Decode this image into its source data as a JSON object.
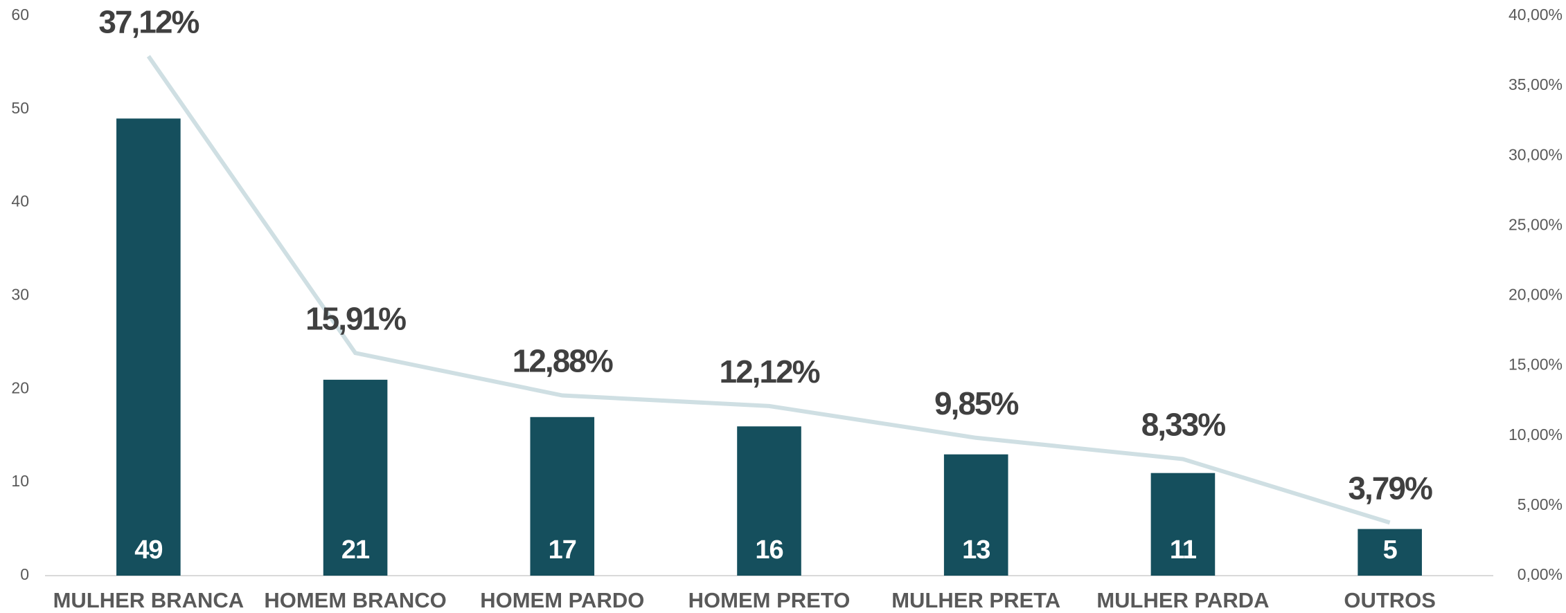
{
  "chart_data": {
    "type": "bar",
    "categories": [
      "MULHER BRANCA",
      "HOMEM BRANCO",
      "HOMEM PARDO",
      "HOMEM PRETO",
      "MULHER PRETA",
      "MULHER PARDA",
      "OUTROS"
    ],
    "series": [
      {
        "type": "bar",
        "color": "#154f5d",
        "values": [
          49,
          21,
          17,
          16,
          13,
          11,
          5
        ]
      },
      {
        "type": "line",
        "axis": "y2",
        "color": "#cfdfe3",
        "values": [
          37.12,
          15.91,
          12.88,
          12.12,
          9.85,
          8.33,
          3.79
        ],
        "value_labels": [
          "37,12%",
          "15,91%",
          "12,88%",
          "12,12%",
          "9,85%",
          "8,33%",
          "3,79%"
        ]
      }
    ],
    "ylim": [
      0,
      60
    ],
    "yticks": [
      0,
      10,
      20,
      30,
      40,
      50,
      60
    ],
    "y2lim": [
      0,
      40
    ],
    "y2ticks": [
      {
        "value": 0,
        "label": "0,00%"
      },
      {
        "value": 5,
        "label": "5,00%"
      },
      {
        "value": 10,
        "label": "10,00%"
      },
      {
        "value": 15,
        "label": "15,00%"
      },
      {
        "value": 20,
        "label": "20,00%"
      },
      {
        "value": 25,
        "label": "25,00%"
      },
      {
        "value": 30,
        "label": "30,00%"
      },
      {
        "value": 35,
        "label": "35,00%"
      },
      {
        "value": 40,
        "label": "40,00%"
      }
    ],
    "grid": false
  }
}
